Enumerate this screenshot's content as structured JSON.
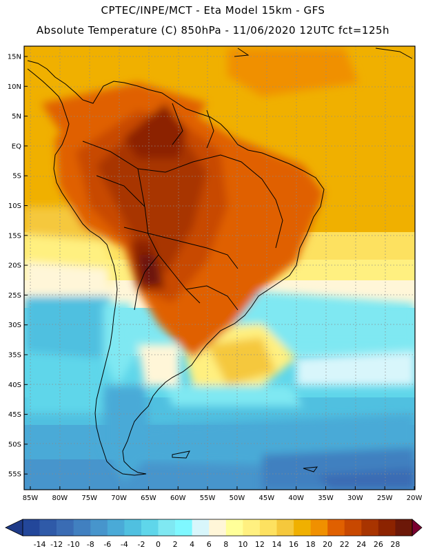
{
  "header": {
    "line1": "CPTEC/INPE/MCT -  Eta Model 15km - GFS",
    "line2": "Absolute Temperature (C) 850hPa - 11/06/2020 12UTC fct=125h"
  },
  "map": {
    "lat_labels": [
      "15N",
      "10N",
      "5N",
      "EQ",
      "5S",
      "10S",
      "15S",
      "20S",
      "25S",
      "30S",
      "35S",
      "40S",
      "45S",
      "50S",
      "55S"
    ],
    "lon_labels": [
      "85W",
      "80W",
      "75W",
      "70W",
      "65W",
      "60W",
      "55W",
      "50W",
      "45W",
      "40W",
      "35W",
      "30W",
      "25W",
      "20W"
    ]
  },
  "colorbar": {
    "labels": [
      "-14",
      "-12",
      "-10",
      "-8",
      "-6",
      "-4",
      "-2",
      "0",
      "2",
      "4",
      "6",
      "8",
      "10",
      "12",
      "14",
      "16",
      "18",
      "20",
      "22",
      "24",
      "26",
      "28"
    ],
    "colors": [
      "#23479a",
      "#2f5aa8",
      "#3a6cb4",
      "#4180c0",
      "#4795cc",
      "#4aaad7",
      "#50c0e0",
      "#5fd6ea",
      "#7fe8f2",
      "#7ff8ff",
      "#d8f6fb",
      "#fff6d8",
      "#ffff99",
      "#fff080",
      "#fde160",
      "#f5c83c",
      "#f0b000",
      "#f09000",
      "#e06000",
      "#c84800",
      "#a83400",
      "#8c2300",
      "#6c1808"
    ],
    "arrow_left": "#1e3a88",
    "arrow_right": "#7a0030"
  }
}
